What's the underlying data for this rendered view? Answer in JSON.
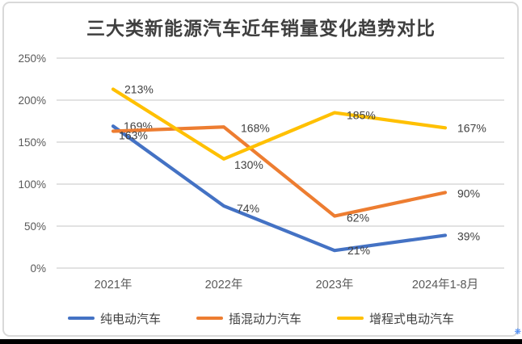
{
  "chart_data": {
    "type": "line",
    "title": "三大类新能源汽车近年销量变化趋势对比",
    "categories": [
      "2021年",
      "2022年",
      "2023年",
      "2024年1-8月"
    ],
    "series": [
      {
        "name": "纯电动汽车",
        "color": "#4472C4",
        "values": [
          169,
          74,
          21,
          39
        ]
      },
      {
        "name": "插混动力汽车",
        "color": "#ED7D31",
        "values": [
          163,
          168,
          62,
          90
        ]
      },
      {
        "name": "增程式电动汽车",
        "color": "#FFC000",
        "values": [
          213,
          130,
          185,
          167
        ]
      }
    ],
    "data_labels": [
      [
        "169%",
        "74%",
        "21%",
        "39%"
      ],
      [
        "163%",
        "168%",
        "62%",
        "90%"
      ],
      [
        "213%",
        "130%",
        "185%",
        "167%"
      ]
    ],
    "data_label_suffix": "%",
    "y_axis": {
      "min": 0,
      "max": 250,
      "step": 50,
      "tick_labels": [
        "0%",
        "50%",
        "100%",
        "150%",
        "200%",
        "250%"
      ]
    },
    "grid": true,
    "legend_position": "bottom",
    "colors": {
      "grid": "#d9d9d9",
      "axis_text": "#595959",
      "data_label": "#404040",
      "title": "#3f3f3f",
      "frame_border": "#d9d9d9"
    }
  }
}
